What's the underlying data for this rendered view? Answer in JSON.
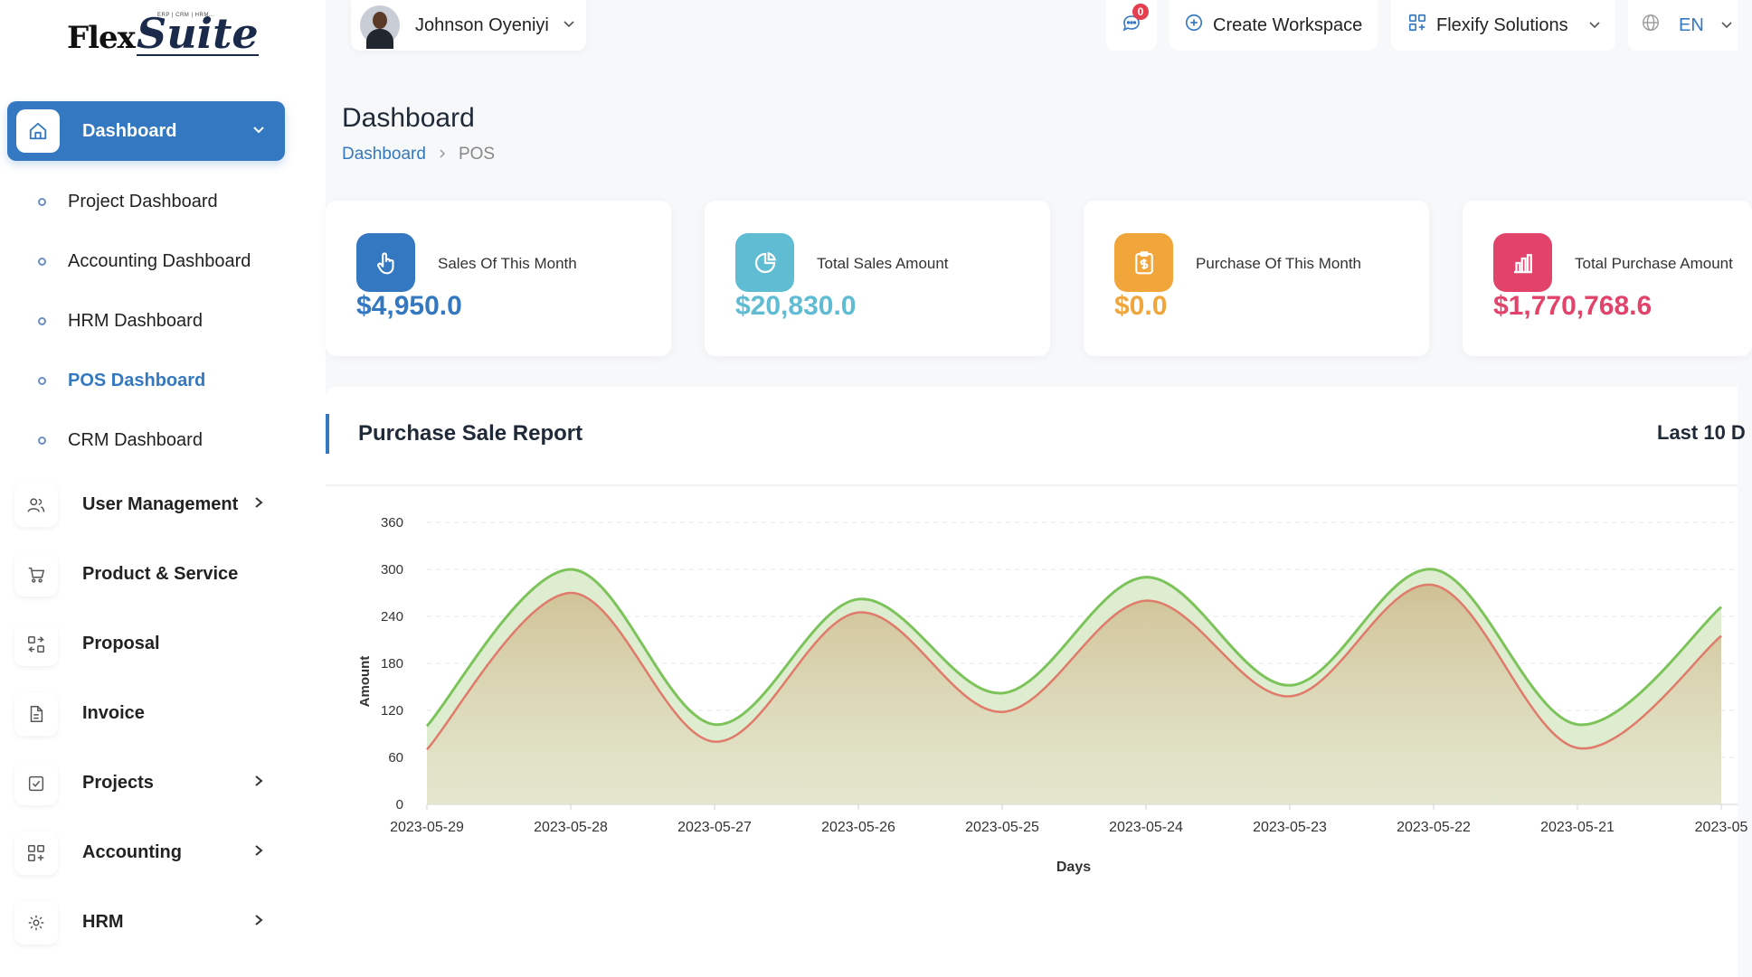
{
  "brand": {
    "name_a": "Flex",
    "name_b": "Suite",
    "tagline": "ERP | CRM | HRM..."
  },
  "header": {
    "user_name": "Johnson Oyeniyi",
    "notification_count": "0",
    "create_workspace": "Create Workspace",
    "company": "Flexify Solutions",
    "language": "EN"
  },
  "sidebar": {
    "active": "Dashboard",
    "sub_items": [
      "Project Dashboard",
      "Accounting Dashboard",
      "HRM Dashboard",
      "POS Dashboard",
      "CRM Dashboard"
    ],
    "active_sub": "POS Dashboard",
    "items": [
      {
        "label": "User Management",
        "icon": "users-icon",
        "has_children": true
      },
      {
        "label": "Product & Service",
        "icon": "cart-icon",
        "has_children": false
      },
      {
        "label": "Proposal",
        "icon": "proposal-icon",
        "has_children": false
      },
      {
        "label": "Invoice",
        "icon": "invoice-icon",
        "has_children": false
      },
      {
        "label": "Projects",
        "icon": "checkbox-icon",
        "has_children": true
      },
      {
        "label": "Accounting",
        "icon": "grid-icon",
        "has_children": true
      },
      {
        "label": "HRM",
        "icon": "hrm-icon",
        "has_children": true
      }
    ]
  },
  "page": {
    "title": "Dashboard",
    "breadcrumb": [
      "Dashboard",
      "POS"
    ]
  },
  "cards": [
    {
      "label": "Sales Of This Month",
      "value": "$4,950.0",
      "color": "#3378c0",
      "icon": "hand-pointer-icon"
    },
    {
      "label": "Total Sales Amount",
      "value": "$20,830.0",
      "color": "#5fbcd3",
      "icon": "pie-chart-icon"
    },
    {
      "label": "Purchase Of This Month",
      "value": "$0.0",
      "color": "#f0a63a",
      "icon": "clipboard-dollar-icon"
    },
    {
      "label": "Total Purchase Amount",
      "value": "$1,770,768.6",
      "color": "#e2436b",
      "icon": "bar-chart-icon"
    }
  ],
  "report": {
    "title": "Purchase Sale Report",
    "range_label": "Last 10 D"
  },
  "chart_data": {
    "type": "area",
    "xlabel": "Days",
    "ylabel": "Amount",
    "ylim": [
      0,
      360
    ],
    "yticks": [
      0,
      60,
      120,
      180,
      240,
      300,
      360
    ],
    "categories": [
      "2023-05-29",
      "2023-05-28",
      "2023-05-27",
      "2023-05-26",
      "2023-05-25",
      "2023-05-24",
      "2023-05-23",
      "2023-05-22",
      "2023-05-21",
      "2023-05"
    ],
    "series": [
      {
        "values": [
          100,
          300,
          102,
          262,
          142,
          290,
          152,
          300,
          102,
          252
        ],
        "color": "#7cc35a"
      },
      {
        "values": [
          70,
          270,
          80,
          245,
          118,
          260,
          138,
          280,
          72,
          215
        ],
        "color": "#e07a6a"
      }
    ],
    "grid": true
  }
}
